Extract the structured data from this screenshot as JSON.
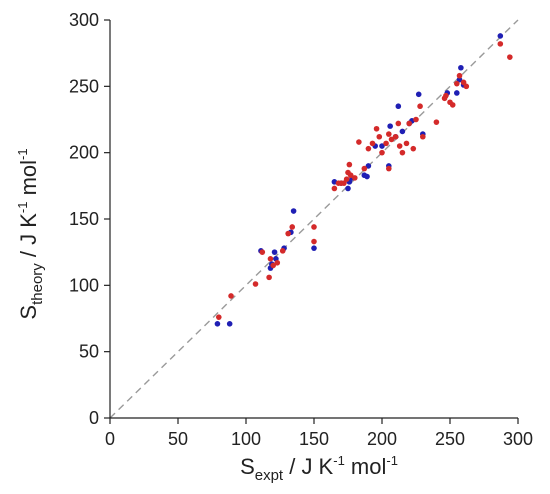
{
  "chart_data": {
    "type": "scatter",
    "title": "",
    "xlabel": {
      "base": "S",
      "sub": "expt",
      "rest1": " / J K",
      "sup1": "-1",
      "rest2": " mol",
      "sup2": "-1"
    },
    "ylabel": {
      "base": "S",
      "sub": "theory",
      "rest1": " / J K",
      "sup1": "-1",
      "rest2": " mol",
      "sup2": "-1"
    },
    "xlim": [
      0,
      300
    ],
    "ylim": [
      0,
      300
    ],
    "xticks": [
      "0",
      "50",
      "100",
      "150",
      "200",
      "250",
      "300"
    ],
    "yticks": [
      "0",
      "50",
      "100",
      "150",
      "200",
      "250",
      "300"
    ],
    "grid": false,
    "legend": "none",
    "reference_line": {
      "style": "dashed",
      "color": "#9a9a9a",
      "from": [
        0,
        0
      ],
      "to": [
        300,
        300
      ]
    },
    "series": [
      {
        "color": "#1f1fb4",
        "x": [
          79,
          88,
          111,
          118,
          119,
          121,
          122,
          128,
          133,
          135,
          150,
          165,
          170,
          175,
          176,
          178,
          187,
          189,
          190,
          195,
          200,
          205,
          206,
          210,
          212,
          215,
          220,
          222,
          227,
          230,
          248,
          255,
          257,
          258,
          260,
          287
        ],
        "y": [
          71,
          71,
          126,
          113,
          116,
          125,
          120,
          128,
          140,
          156,
          128,
          178,
          177,
          173,
          178,
          181,
          183,
          182,
          190,
          205,
          205,
          190,
          220,
          212,
          235,
          216,
          222,
          224,
          244,
          214,
          245,
          245,
          255,
          264,
          251,
          288
        ]
      },
      {
        "color": "#d42a2a",
        "x": [
          80,
          89,
          107,
          112,
          117,
          118,
          120,
          123,
          127,
          131,
          134,
          150,
          150,
          165,
          168,
          170,
          172,
          174,
          175,
          176,
          177,
          180,
          183,
          187,
          190,
          193,
          196,
          198,
          200,
          203,
          205,
          205,
          207,
          210,
          212,
          213,
          215,
          218,
          220,
          223,
          225,
          228,
          230,
          240,
          246,
          247,
          250,
          252,
          255,
          257,
          260,
          262,
          287,
          294
        ],
        "y": [
          76,
          92,
          101,
          125,
          106,
          120,
          115,
          117,
          126,
          139,
          144,
          133,
          144,
          173,
          177,
          177,
          177,
          180,
          185,
          191,
          183,
          181,
          208,
          188,
          203,
          207,
          218,
          212,
          200,
          207,
          188,
          214,
          210,
          212,
          222,
          205,
          200,
          207,
          222,
          203,
          225,
          235,
          212,
          223,
          241,
          243,
          238,
          236,
          252,
          258,
          253,
          250,
          282,
          272
        ]
      }
    ]
  }
}
